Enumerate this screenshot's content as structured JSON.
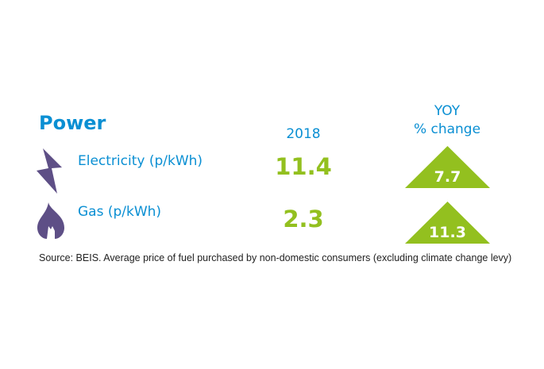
{
  "title": "Power",
  "columns": {
    "year": "2018",
    "yoy_line1": "YOY",
    "yoy_line2": "% change"
  },
  "rows": [
    {
      "label": "Electricity (p/kWh)",
      "icon": "lightning-bolt-icon",
      "value": "11.4",
      "yoy": "7.7"
    },
    {
      "label": "Gas (p/kWh)",
      "icon": "flame-icon",
      "value": "2.3",
      "yoy": "11.3"
    }
  ],
  "source": "Source: BEIS. Average price of fuel purchased by non-domestic consumers (excluding climate change levy)",
  "colors": {
    "blue": "#0a8fd3",
    "green": "#93c01f",
    "icon": "#5e4f86"
  }
}
